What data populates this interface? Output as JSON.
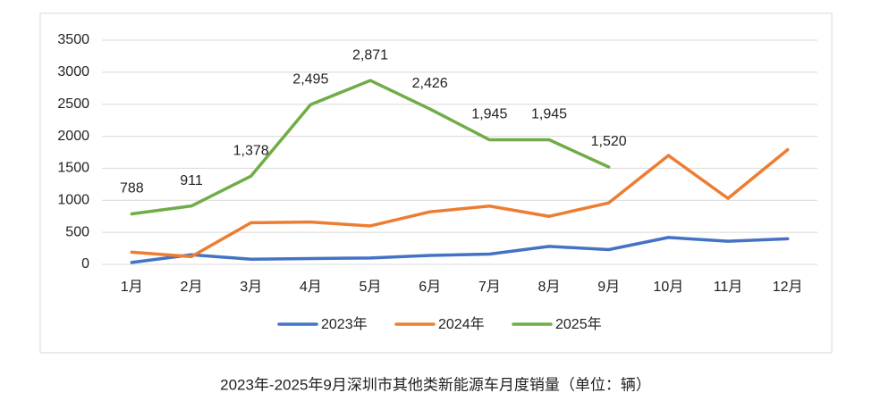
{
  "chart_data": {
    "type": "line",
    "title": "2023年-2025年9月深圳市其他类新能源车月度销量（单位：辆）",
    "categories": [
      "1月",
      "2月",
      "3月",
      "4月",
      "5月",
      "6月",
      "7月",
      "8月",
      "9月",
      "10月",
      "11月",
      "12月"
    ],
    "series": [
      {
        "name": "2023年",
        "color": "#4472c4",
        "values": [
          30,
          150,
          80,
          90,
          100,
          140,
          160,
          280,
          230,
          420,
          360,
          400
        ]
      },
      {
        "name": "2024年",
        "color": "#ed7d31",
        "values": [
          190,
          120,
          650,
          660,
          600,
          820,
          910,
          750,
          960,
          1700,
          1030,
          1790
        ]
      },
      {
        "name": "2025年",
        "color": "#70ad47",
        "values": [
          788,
          911,
          1378,
          2495,
          2871,
          2426,
          1945,
          1945,
          1520,
          null,
          null,
          null
        ],
        "value_labels": [
          "788",
          "911",
          "1,378",
          "2,495",
          "2,871",
          "2,426",
          "1,945",
          "1,945",
          "1,520",
          null,
          null,
          null
        ]
      }
    ],
    "ylim": [
      0,
      3500
    ],
    "yticks": [
      0,
      500,
      1000,
      1500,
      2000,
      2500,
      3000,
      3500
    ],
    "grid": true,
    "legend": "bottom"
  }
}
